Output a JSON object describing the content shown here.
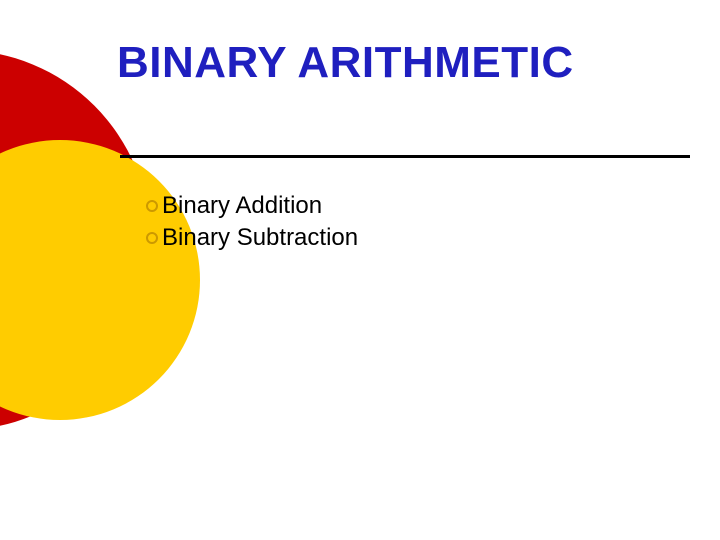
{
  "slide": {
    "title": "BINARY ARITHMETIC",
    "title_color": "#1f1fbf",
    "title_fontsize": 44,
    "background_color": "#ffffff",
    "divider_color": "#000000",
    "bullets": [
      {
        "text": "Binary Addition"
      },
      {
        "text": "Binary Subtraction"
      }
    ],
    "bullet_fontsize": 24,
    "bullet_text_color": "#000000",
    "bullet_marker_color": "#cc9900",
    "decorations": {
      "red_circle_color": "#cc0000",
      "yellow_circle_color": "#ffcc00"
    }
  }
}
